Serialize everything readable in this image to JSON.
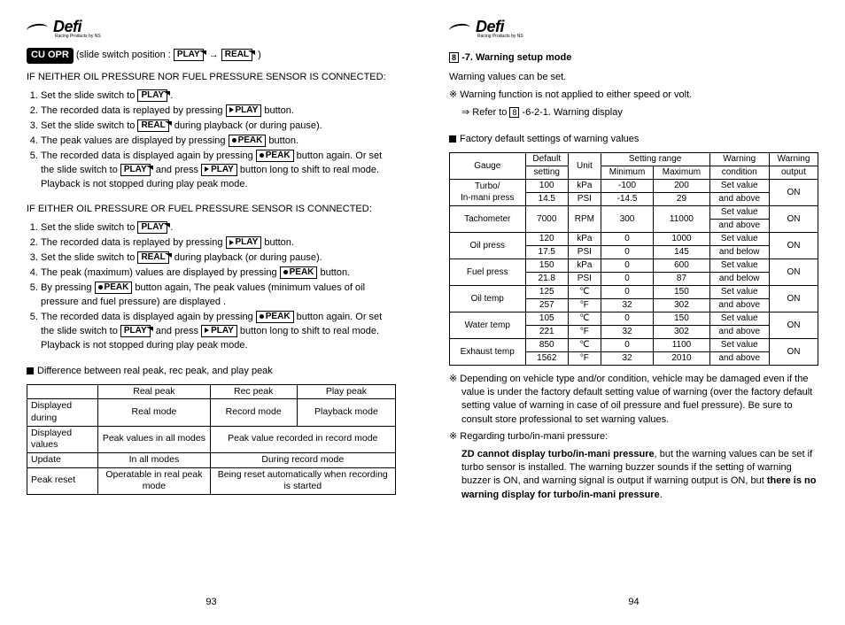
{
  "logo": "Defi",
  "logo_sub": "Racing Products by NS",
  "left": {
    "badge": "CU OPR",
    "slide_label": "(slide switch position :",
    "play_btn": "PLAY",
    "real_btn": "REAL",
    "peak_btn": "PEAK",
    "arrow": "→",
    "closing": ")",
    "cond1": "IF NEITHER OIL PRESSURE NOR FUEL PRESSURE SENSOR IS CONNECTED:",
    "l1_1a": "Set the slide switch to ",
    "l1_1b": ".",
    "l1_2a": "The recorded data is replayed by pressing ",
    "l1_2b": " button.",
    "l1_3a": "Set the slide switch to ",
    "l1_3b": " during playback (or during pause).",
    "l1_4a": "The peak values are displayed by pressing ",
    "l1_4b": " button.",
    "l1_5a": "The recorded data is displayed again by pressing ",
    "l1_5b": " button again. Or set the slide switch to ",
    "l1_5c": " and press ",
    "l1_5d": " button long to shift to real mode.  Playback is not stopped during play peak mode.",
    "cond2": "IF EITHER OIL PRESSURE OR FUEL PRESSURE SENSOR IS CONNECTED:",
    "l2_4a": "The peak (maximum) values are displayed by pressing ",
    "l2_4b": " button.",
    "l2_5a": "By pressing ",
    "l2_5b": " button again, The peak values (minimum values of oil pressure and fuel pressure) are displayed .",
    "diff_head": "Difference between real peak, rec peak, and play peak",
    "t1": {
      "h": [
        "",
        "Real peak",
        "Rec peak",
        "Play peak"
      ],
      "r1": [
        "Displayed during",
        "Real mode",
        "Record mode",
        "Playback mode"
      ],
      "r2": [
        "Displayed values",
        "Peak values in all modes",
        "Peak value recorded in record mode"
      ],
      "r3": [
        "Update",
        "In all modes",
        "During record mode"
      ],
      "r4": [
        "Peak reset",
        "Operatable in real peak mode",
        "Being reset automatically when recording is started"
      ]
    },
    "pagenum": "93"
  },
  "right": {
    "head_num": "8",
    "head": " -7. Warning setup mode",
    "p1": "Warning values can be set.",
    "p2": "※ Warning function is not applied to either speed or volt.",
    "p3a": "⇒ Refer to ",
    "p3b": " -6-2-1. Warning display",
    "tbl_head": "Factory default settings of warning values",
    "cols": {
      "gauge": "Gauge",
      "default": "Default setting",
      "unit": "Unit",
      "range": "Setting range",
      "min": "Minimum",
      "max": "Maximum",
      "wcond": "Warning condition",
      "wout": "Warning output"
    },
    "rows": [
      {
        "g": "Turbo/\nIn-mani press",
        "d1": "100",
        "u1": "kPa",
        "mn1": "-100",
        "mx1": "200",
        "d2": "14.5",
        "u2": "PSI",
        "mn2": "-14.5",
        "mx2": "29",
        "c": "Set value and above",
        "o": "ON"
      },
      {
        "g": "Tachometer",
        "d1": "7000",
        "u1": "RPM",
        "mn1": "300",
        "mx1": "11000",
        "c": "Set value and above",
        "o": "ON",
        "single": true
      },
      {
        "g": "Oil press",
        "d1": "120",
        "u1": "kPa",
        "mn1": "0",
        "mx1": "1000",
        "d2": "17.5",
        "u2": "PSI",
        "mn2": "0",
        "mx2": "145",
        "c": "Set value and below",
        "o": "ON"
      },
      {
        "g": "Fuel press",
        "d1": "150",
        "u1": "kPa",
        "mn1": "0",
        "mx1": "600",
        "d2": "21.8",
        "u2": "PSI",
        "mn2": "0",
        "mx2": "87",
        "c": "Set value and below",
        "o": "ON"
      },
      {
        "g": "Oil temp",
        "d1": "125",
        "u1": "℃",
        "mn1": "0",
        "mx1": "150",
        "d2": "257",
        "u2": "°F",
        "mn2": "32",
        "mx2": "302",
        "c": "Set value and above",
        "o": "ON"
      },
      {
        "g": "Water temp",
        "d1": "105",
        "u1": "℃",
        "mn1": "0",
        "mx1": "150",
        "d2": "221",
        "u2": "°F",
        "mn2": "32",
        "mx2": "302",
        "c": "Set value and above",
        "o": "ON"
      },
      {
        "g": "Exhaust temp",
        "d1": "850",
        "u1": "℃",
        "mn1": "0",
        "mx1": "1100",
        "d2": "1562",
        "u2": "°F",
        "mn2": "32",
        "mx2": "2010",
        "c": "Set value and above",
        "o": "ON"
      }
    ],
    "note1": "※ Depending on vehicle type and/or condition, vehicle may be damaged even if the value is under the factory default setting value of warning (over the factory default setting value of warning in case of oil pressure and fuel pressure).  Be sure to consult store professional to set warning values.",
    "note2a": "※ Regarding turbo/in-mani pressure:",
    "note2b_bold1": "ZD cannot display turbo/in-mani pressure",
    "note2b_mid": ", but the warning values can be set if turbo sensor is installed.  The warning buzzer sounds if the setting of warning buzzer is ON, and warning signal is output if warning output is ON, but ",
    "note2b_bold2": "there is no warning display for turbo/in-mani pressure",
    "note2b_end": ".",
    "pagenum": "94"
  }
}
